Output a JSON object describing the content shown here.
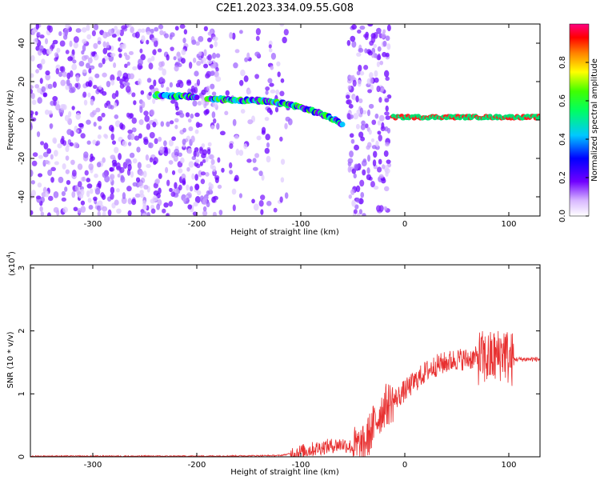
{
  "title": "C2E1.2023.334.09.55.G08",
  "chart_data": [
    {
      "type": "heatmap",
      "xlabel": "Height of straight line (km)",
      "ylabel": "Frequency (Hz)",
      "xlim": [
        -360,
        130
      ],
      "ylim": [
        -50,
        50
      ],
      "x_ticks": [
        "-300",
        "-200",
        "-100",
        "0",
        "100"
      ],
      "y_ticks": [
        "-40",
        "-20",
        "0",
        "20",
        "40"
      ],
      "colorbar": {
        "label": "Normalized spectral amplitude",
        "range": [
          0,
          1
        ],
        "ticks": [
          "0.0",
          "0.2",
          "0.4",
          "0.6",
          "0.8"
        ]
      },
      "ridge_segments": [
        {
          "x": [
            -240,
            -200
          ],
          "y": [
            13,
            12
          ]
        },
        {
          "x": [
            -190,
            -140,
            -110,
            -90,
            -75,
            -60
          ],
          "y": [
            11,
            10,
            8,
            5,
            2,
            -2
          ]
        },
        {
          "x": [
            -12,
            130
          ],
          "y": [
            1.5,
            1.5
          ]
        }
      ],
      "noise_regions": [
        {
          "x": [
            -360,
            -180
          ],
          "density": 0.75
        },
        {
          "x": [
            -180,
            -110
          ],
          "density": 0.25
        },
        {
          "x": [
            -55,
            -15
          ],
          "density": 0.8
        }
      ]
    },
    {
      "type": "line",
      "xlabel": "Height of straight line (km)",
      "ylabel": "SNR (10 * v/v)",
      "y_multiplier": "(x10",
      "y_multiplier_exp": "4",
      "xlim": [
        -360,
        130
      ],
      "ylim": [
        0,
        3.05
      ],
      "x_ticks": [
        "-300",
        "-200",
        "-100",
        "0",
        "100"
      ],
      "y_ticks": [
        "0",
        "1",
        "2",
        "3"
      ],
      "color": "#e83030",
      "series": [
        {
          "x": [
            -360,
            -300,
            -200,
            -120,
            -100,
            -80,
            -60,
            -50,
            -40,
            -30,
            -20,
            -10,
            0,
            10,
            20,
            30,
            40,
            50,
            60,
            70,
            80,
            90,
            95,
            100,
            110,
            120,
            130
          ],
          "y": [
            0.01,
            0.01,
            0.01,
            0.02,
            0.08,
            0.15,
            0.2,
            0.15,
            0.15,
            0.5,
            0.8,
            0.9,
            1.05,
            1.2,
            1.35,
            1.45,
            1.5,
            1.55,
            1.55,
            1.58,
            1.55,
            1.6,
            1.7,
            1.55,
            1.55,
            1.55,
            1.55
          ]
        }
      ]
    }
  ]
}
